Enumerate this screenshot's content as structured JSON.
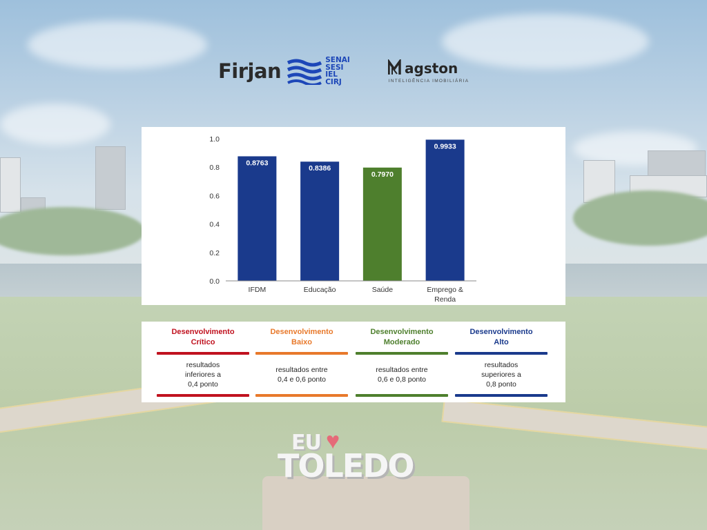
{
  "logos": {
    "firjan": {
      "word": "Firjan",
      "stack": [
        "SENAI",
        "SESI",
        "IEL",
        "CIRJ"
      ],
      "brand_color": "#1d47b8",
      "text_color": "#2b2b2b"
    },
    "magston": {
      "word": "agston",
      "tagline": "INTELIGÊNCIA IMOBILIÁRIA",
      "mark_icon": "magston-m-mark"
    }
  },
  "chart_data": {
    "type": "bar",
    "categories": [
      "IFDM",
      "Educação",
      "Saúde",
      "Emprego & Renda"
    ],
    "category_lines": [
      [
        "IFDM"
      ],
      [
        "Educação"
      ],
      [
        "Saúde"
      ],
      [
        "Emprego &",
        "Renda"
      ]
    ],
    "values": [
      0.8763,
      0.8386,
      0.797,
      0.9933
    ],
    "data_labels": [
      "0.8763",
      "0.8386",
      "0.7970",
      "0.9933"
    ],
    "bar_colors": [
      "#1a3a8c",
      "#1a3a8c",
      "#4e7f2d",
      "#1a3a8c"
    ],
    "ylim": [
      0,
      1.0
    ],
    "yticks": [
      0.0,
      0.2,
      0.4,
      0.6,
      0.8,
      1.0
    ],
    "ytick_labels": [
      "0.0",
      "0.2",
      "0.4",
      "0.6",
      "0.8",
      "1.0"
    ],
    "grid": false,
    "xlabel": "",
    "ylabel": ""
  },
  "legend": {
    "items": [
      {
        "title_lines": [
          "Desenvolvimento",
          "Crítico"
        ],
        "desc_lines": [
          "resultados",
          "inferiores a",
          "0,4 ponto"
        ],
        "color": "#c0121f"
      },
      {
        "title_lines": [
          "Desenvolvimento",
          "Baixo"
        ],
        "desc_lines": [
          "resultados entre",
          "0,4 e 0,6 ponto"
        ],
        "color": "#e8792b"
      },
      {
        "title_lines": [
          "Desenvolvimento",
          "Moderado"
        ],
        "desc_lines": [
          "resultados entre",
          "0,6 e 0,8 ponto"
        ],
        "color": "#4e7f2d"
      },
      {
        "title_lines": [
          "Desenvolvimento",
          "Alto"
        ],
        "desc_lines": [
          "resultados",
          "superiores a",
          "0,8 ponto"
        ],
        "color": "#1a3a8c"
      }
    ]
  },
  "photo": {
    "sign_prefix": "EU",
    "sign_city": "TOLEDO",
    "heart_icon": "heart-icon"
  }
}
